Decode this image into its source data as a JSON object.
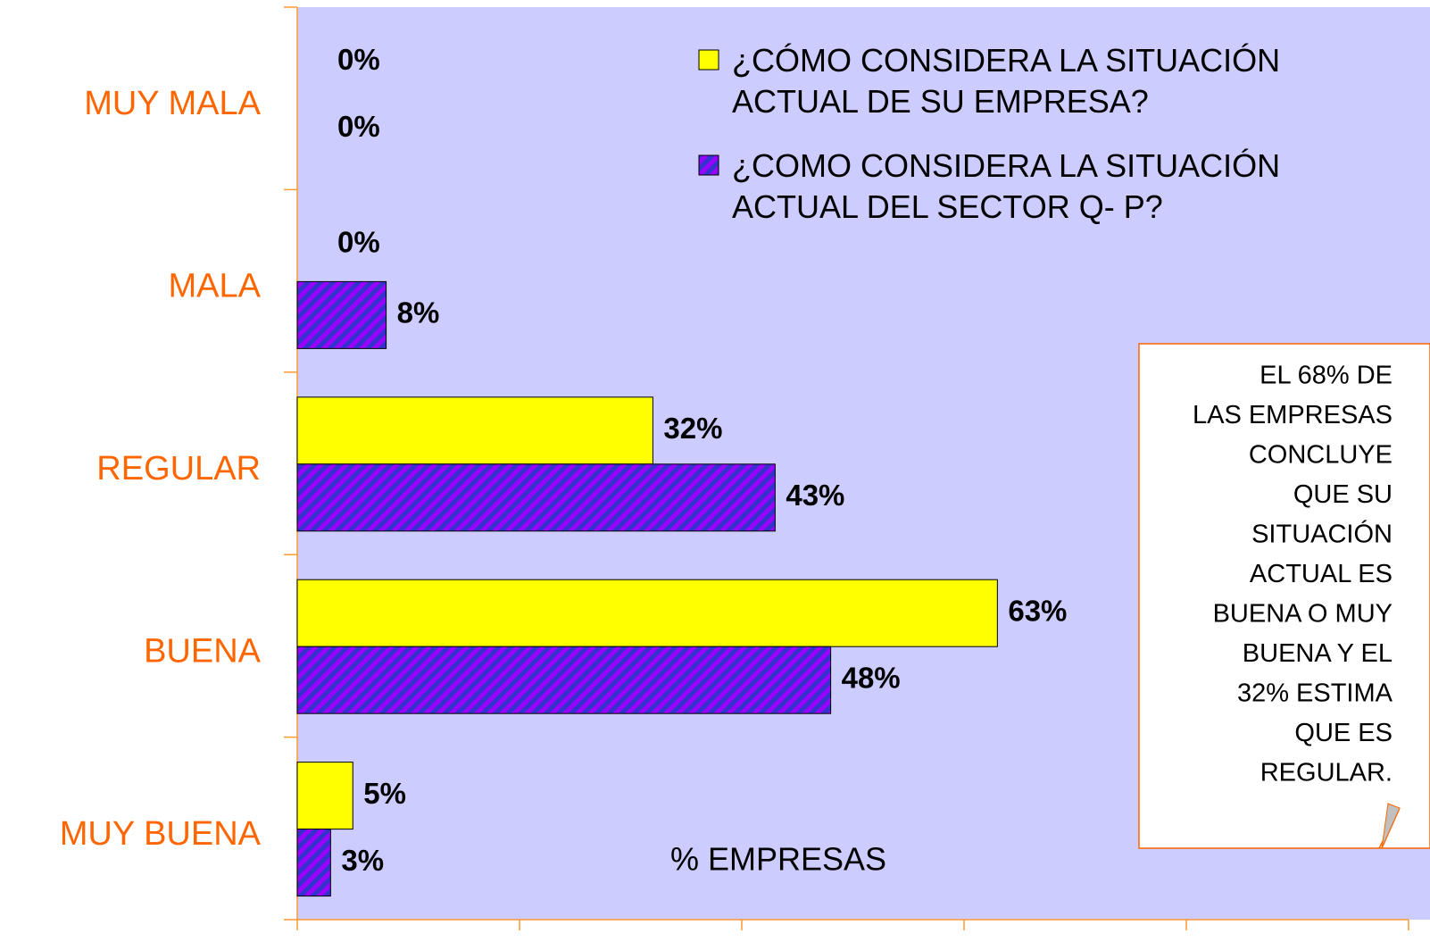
{
  "chart_data": {
    "type": "bar",
    "orientation": "horizontal",
    "categories": [
      "MUY MALA",
      "MALA",
      "REGULAR",
      "BUENA",
      "MUY BUENA"
    ],
    "series": [
      {
        "name": "¿CÓMO CONSIDERA LA SITUACIÓN ACTUAL DE SU EMPRESA?",
        "color": "#ffff00",
        "values": [
          0,
          0,
          32,
          63,
          5
        ],
        "value_labels": [
          "0%",
          "0%",
          "32%",
          "63%",
          "5%"
        ]
      },
      {
        "name": "¿COMO CONSIDERA LA SITUACIÓN ACTUAL DEL SECTOR Q- P?",
        "color": "#9900ff",
        "values": [
          0,
          8,
          43,
          48,
          3
        ],
        "value_labels": [
          "0%",
          "8%",
          "43%",
          "48%",
          "3%"
        ]
      }
    ],
    "xlabel": "% EMPRESAS",
    "xlim": [
      0,
      100
    ],
    "xticks": [
      0,
      20,
      40,
      60,
      80,
      100
    ],
    "annotation": [
      "EL 68% DE",
      "LAS EMPRESAS",
      "CONCLUYE",
      "QUE SU",
      "SITUACIÓN",
      "ACTUAL ES",
      "BUENA O MUY",
      "BUENA Y EL",
      "32% ESTIMA",
      "QUE ES",
      "REGULAR."
    ]
  }
}
